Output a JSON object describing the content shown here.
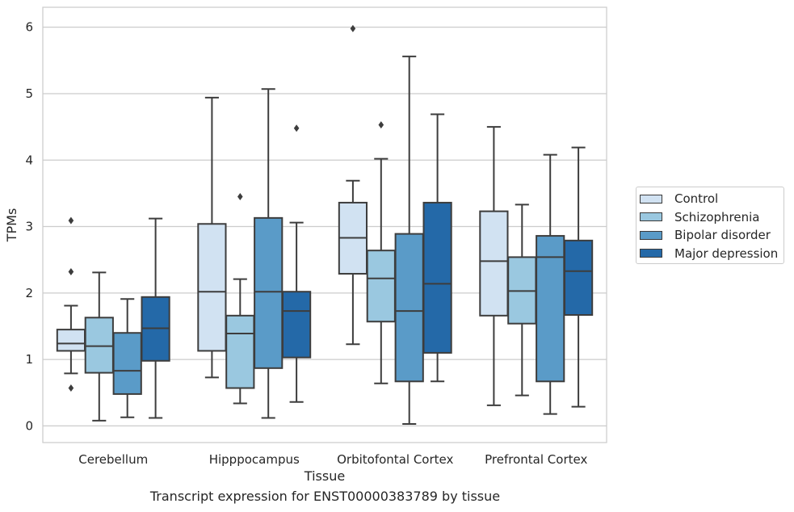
{
  "chart_data": {
    "type": "box",
    "xlabel": "Tissue",
    "ylabel": "TPMs",
    "caption": "Transcript expression for ENST00000383789 by tissue",
    "ylim": [
      -0.25,
      6.3
    ],
    "yticks": [
      0,
      1,
      2,
      3,
      4,
      5,
      6
    ],
    "grid": true,
    "legend_position": "right",
    "categories": [
      "Cerebellum",
      "Hipppocampus",
      "Orbitofontal Cortex",
      "Prefrontal Cortex"
    ],
    "series": [
      {
        "name": "Control",
        "color": "#d1e2f2",
        "boxes": [
          {
            "whisker_low": 0.79,
            "q1": 1.13,
            "median": 1.24,
            "q3": 1.45,
            "whisker_high": 1.81,
            "outliers": [
              3.09,
              2.32,
              0.57
            ]
          },
          {
            "whisker_low": 0.73,
            "q1": 1.13,
            "median": 2.02,
            "q3": 3.04,
            "whisker_high": 4.94,
            "outliers": []
          },
          {
            "whisker_low": 1.23,
            "q1": 2.29,
            "median": 2.83,
            "q3": 3.36,
            "whisker_high": 3.69,
            "outliers": [
              5.98
            ]
          },
          {
            "whisker_low": 0.31,
            "q1": 1.66,
            "median": 2.48,
            "q3": 3.23,
            "whisker_high": 4.5,
            "outliers": []
          }
        ]
      },
      {
        "name": "Schizophrenia",
        "color": "#9ac8e0",
        "boxes": [
          {
            "whisker_low": 0.08,
            "q1": 0.8,
            "median": 1.2,
            "q3": 1.63,
            "whisker_high": 2.31,
            "outliers": []
          },
          {
            "whisker_low": 0.34,
            "q1": 0.57,
            "median": 1.39,
            "q3": 1.66,
            "whisker_high": 2.21,
            "outliers": [
              3.45
            ]
          },
          {
            "whisker_low": 0.64,
            "q1": 1.57,
            "median": 2.22,
            "q3": 2.64,
            "whisker_high": 4.02,
            "outliers": [
              4.53
            ]
          },
          {
            "whisker_low": 0.46,
            "q1": 1.54,
            "median": 2.03,
            "q3": 2.54,
            "whisker_high": 3.33,
            "outliers": []
          }
        ]
      },
      {
        "name": "Bipolar disorder",
        "color": "#5a9bc8",
        "boxes": [
          {
            "whisker_low": 0.13,
            "q1": 0.48,
            "median": 0.83,
            "q3": 1.4,
            "whisker_high": 1.91,
            "outliers": []
          },
          {
            "whisker_low": 0.12,
            "q1": 0.87,
            "median": 2.02,
            "q3": 3.13,
            "whisker_high": 5.07,
            "outliers": []
          },
          {
            "whisker_low": 0.03,
            "q1": 0.67,
            "median": 1.73,
            "q3": 2.89,
            "whisker_high": 5.56,
            "outliers": []
          },
          {
            "whisker_low": 0.18,
            "q1": 0.67,
            "median": 2.54,
            "q3": 2.86,
            "whisker_high": 4.08,
            "outliers": []
          }
        ]
      },
      {
        "name": "Major depression",
        "color": "#2469a8",
        "boxes": [
          {
            "whisker_low": 0.12,
            "q1": 0.98,
            "median": 1.47,
            "q3": 1.94,
            "whisker_high": 3.12,
            "outliers": []
          },
          {
            "whisker_low": 0.36,
            "q1": 1.03,
            "median": 1.73,
            "q3": 2.02,
            "whisker_high": 3.06,
            "outliers": [
              4.48
            ]
          },
          {
            "whisker_low": 0.67,
            "q1": 1.1,
            "median": 2.14,
            "q3": 3.36,
            "whisker_high": 4.69,
            "outliers": []
          },
          {
            "whisker_low": 0.29,
            "q1": 1.67,
            "median": 2.33,
            "q3": 2.79,
            "whisker_high": 4.19,
            "outliers": []
          }
        ]
      }
    ]
  }
}
